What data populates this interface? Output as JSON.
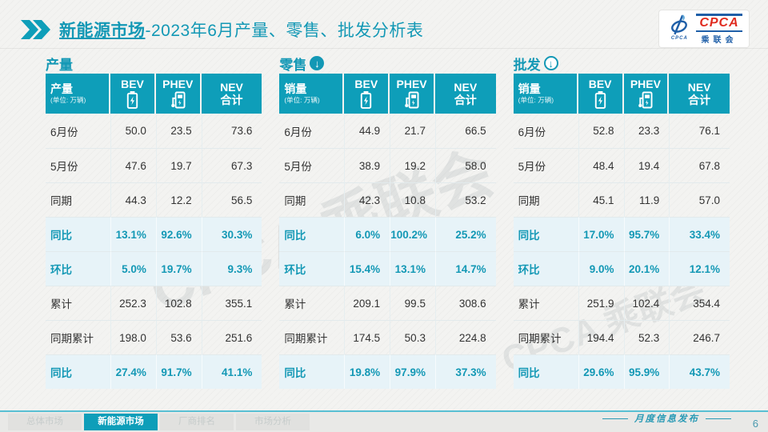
{
  "page": {
    "title_bold": "新能源市场",
    "title_rest": "-2023年6月产量、零售、批发分析表",
    "footer_label": "月度信息发布",
    "page_number": "6",
    "watermark": "CPCA 乘联会"
  },
  "logo": {
    "acronym": "CPCA",
    "chinese": "乘联会",
    "swoosh_caption": "CPCA"
  },
  "colors": {
    "accent_teal": "#0e9eb9",
    "highlight_row_bg": "#e7f3f8",
    "logo_blue": "#1f5fa8",
    "logo_red": "#e02b20"
  },
  "tabs": [
    {
      "label": "总体市场",
      "active": false
    },
    {
      "label": "新能源市场",
      "active": true
    },
    {
      "label": "厂商排名",
      "active": false
    },
    {
      "label": "市场分析",
      "active": false
    }
  ],
  "tables": [
    {
      "id": "production",
      "section_title": "产量",
      "arrow": "none",
      "corner_label": "产量",
      "unit_note": "(单位: 万辆)",
      "columns": [
        {
          "label": "BEV",
          "icon": "battery-icon"
        },
        {
          "label": "PHEV",
          "icon": "charger-icon"
        },
        {
          "label": "NEV",
          "label2": "合计",
          "icon": "none"
        }
      ],
      "rows": [
        {
          "label": "6月份",
          "values": [
            "50.0",
            "23.5",
            "73.6"
          ],
          "highlight": false
        },
        {
          "label": "5月份",
          "values": [
            "47.6",
            "19.7",
            "67.3"
          ],
          "highlight": false
        },
        {
          "label": "同期",
          "values": [
            "44.3",
            "12.2",
            "56.5"
          ],
          "highlight": false
        },
        {
          "label": "同比",
          "values": [
            "13.1%",
            "92.6%",
            "30.3%"
          ],
          "highlight": true
        },
        {
          "label": "环比",
          "values": [
            "5.0%",
            "19.7%",
            "9.3%"
          ],
          "highlight": true
        },
        {
          "label": "累计",
          "values": [
            "252.3",
            "102.8",
            "355.1"
          ],
          "highlight": false
        },
        {
          "label": "同期累计",
          "values": [
            "198.0",
            "53.6",
            "251.6"
          ],
          "highlight": false
        },
        {
          "label": "同比",
          "values": [
            "27.4%",
            "91.7%",
            "41.1%"
          ],
          "highlight": true
        }
      ]
    },
    {
      "id": "retail",
      "section_title": "零售",
      "arrow": "filled",
      "corner_label": "销量",
      "unit_note": "(单位: 万辆)",
      "columns": [
        {
          "label": "BEV",
          "icon": "battery-icon"
        },
        {
          "label": "PHEV",
          "icon": "charger-icon"
        },
        {
          "label": "NEV",
          "label2": "合计",
          "icon": "none"
        }
      ],
      "rows": [
        {
          "label": "6月份",
          "values": [
            "44.9",
            "21.7",
            "66.5"
          ],
          "highlight": false
        },
        {
          "label": "5月份",
          "values": [
            "38.9",
            "19.2",
            "58.0"
          ],
          "highlight": false
        },
        {
          "label": "同期",
          "values": [
            "42.3",
            "10.8",
            "53.2"
          ],
          "highlight": false
        },
        {
          "label": "同比",
          "values": [
            "6.0%",
            "100.2%",
            "25.2%"
          ],
          "highlight": true
        },
        {
          "label": "环比",
          "values": [
            "15.4%",
            "13.1%",
            "14.7%"
          ],
          "highlight": true
        },
        {
          "label": "累计",
          "values": [
            "209.1",
            "99.5",
            "308.6"
          ],
          "highlight": false
        },
        {
          "label": "同期累计",
          "values": [
            "174.5",
            "50.3",
            "224.8"
          ],
          "highlight": false
        },
        {
          "label": "同比",
          "values": [
            "19.8%",
            "97.9%",
            "37.3%"
          ],
          "highlight": true
        }
      ]
    },
    {
      "id": "wholesale",
      "section_title": "批发",
      "arrow": "outlined",
      "corner_label": "销量",
      "unit_note": "(单位: 万辆)",
      "columns": [
        {
          "label": "BEV",
          "icon": "battery-icon"
        },
        {
          "label": "PHEV",
          "icon": "charger-icon"
        },
        {
          "label": "NEV",
          "label2": "合计",
          "icon": "none"
        }
      ],
      "rows": [
        {
          "label": "6月份",
          "values": [
            "52.8",
            "23.3",
            "76.1"
          ],
          "highlight": false
        },
        {
          "label": "5月份",
          "values": [
            "48.4",
            "19.4",
            "67.8"
          ],
          "highlight": false
        },
        {
          "label": "同期",
          "values": [
            "45.1",
            "11.9",
            "57.0"
          ],
          "highlight": false
        },
        {
          "label": "同比",
          "values": [
            "17.0%",
            "95.7%",
            "33.4%"
          ],
          "highlight": true
        },
        {
          "label": "环比",
          "values": [
            "9.0%",
            "20.1%",
            "12.1%"
          ],
          "highlight": true
        },
        {
          "label": "累计",
          "values": [
            "251.9",
            "102.4",
            "354.4"
          ],
          "highlight": false
        },
        {
          "label": "同期累计",
          "values": [
            "194.4",
            "52.3",
            "246.7"
          ],
          "highlight": false
        },
        {
          "label": "同比",
          "values": [
            "29.6%",
            "95.9%",
            "43.7%"
          ],
          "highlight": true
        }
      ]
    }
  ]
}
